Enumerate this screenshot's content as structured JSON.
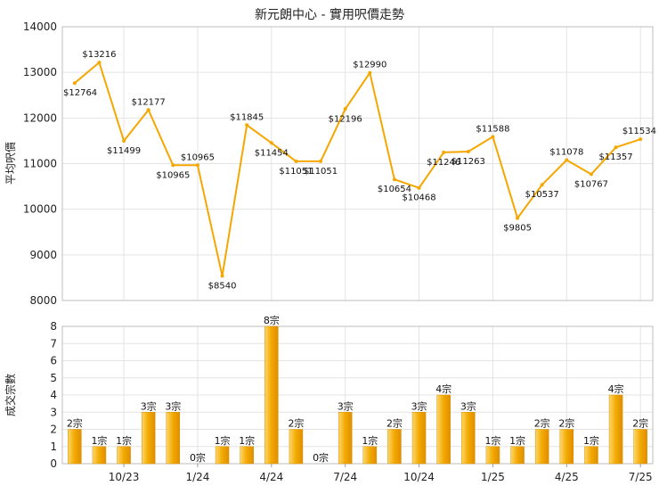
{
  "chart_data": [
    {
      "type": "line",
      "title": "新元朗中心 - 實用呎價走勢",
      "ylabel": "平均呎價",
      "ylim": [
        8000,
        14000
      ],
      "yticks": [
        "8000",
        "9000",
        "10000",
        "11000",
        "12000",
        "13000",
        "14000"
      ],
      "value_prefix": "$",
      "grid": true,
      "color": "#f5a700",
      "values": [
        12764,
        13216,
        11499,
        12177,
        10965,
        10965,
        8540,
        11845,
        11454,
        11051,
        11051,
        12196,
        12990,
        10654,
        10468,
        11246,
        11263,
        11588,
        9805,
        10537,
        11078,
        10767,
        11357,
        11534
      ],
      "labels": [
        "$12764",
        "$13216",
        "$11499",
        "$12177",
        "$10965",
        "$10965",
        "$8540",
        "$11845",
        "$11454",
        "$11051",
        "$11051",
        "$12196",
        "$12990",
        "$10654",
        "$10468",
        "$11246",
        "$11263",
        "$11588",
        "$9805",
        "$10537",
        "$11078",
        "$10767",
        "$11357",
        "$11534"
      ]
    },
    {
      "type": "bar",
      "ylabel": "成交宗數",
      "ylim": [
        0,
        8
      ],
      "yticks": [
        "0",
        "1",
        "2",
        "3",
        "4",
        "5",
        "6",
        "7",
        "8"
      ],
      "grid": true,
      "color": "#f2a900",
      "values": [
        2,
        1,
        1,
        3,
        3,
        0,
        1,
        1,
        8,
        2,
        0,
        3,
        1,
        2,
        3,
        4,
        3,
        1,
        1,
        2,
        2,
        1,
        4,
        2
      ],
      "labels": [
        "2宗",
        "1宗",
        "1宗",
        "3宗",
        "3宗",
        "0宗",
        "1宗",
        "1宗",
        "8宗",
        "2宗",
        "0宗",
        "3宗",
        "1宗",
        "2宗",
        "3宗",
        "4宗",
        "3宗",
        "1宗",
        "1宗",
        "2宗",
        "2宗",
        "1宗",
        "4宗",
        "2宗"
      ],
      "x_tick_labels": [
        "10/23",
        "1/24",
        "4/24",
        "7/24",
        "10/24",
        "1/25",
        "4/25",
        "7/25"
      ]
    }
  ]
}
